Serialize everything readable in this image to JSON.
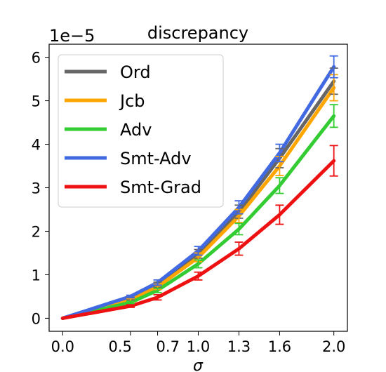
{
  "chart_data": {
    "type": "line",
    "title": "discrepancy",
    "xlabel": "σ",
    "ylabel": "",
    "y_scale_label": "1e−5",
    "x": [
      0.0,
      0.5,
      0.7,
      1.0,
      1.3,
      1.6,
      2.0
    ],
    "x_tick_labels": [
      "0.0",
      "0.5",
      "0.7",
      "1.0",
      "1.3",
      "1.6",
      "2.0"
    ],
    "y_ticks": [
      0,
      1,
      2,
      3,
      4,
      5,
      6
    ],
    "y_tick_labels": [
      "0",
      "1",
      "2",
      "3",
      "4",
      "5",
      "6"
    ],
    "xlim": [
      -0.1,
      2.1
    ],
    "ylim": [
      -0.3,
      6.3
    ],
    "legend_position": "upper-left",
    "series": [
      {
        "name": "Ord",
        "color": "#666666",
        "values": [
          0.0,
          0.45,
          0.77,
          1.48,
          2.45,
          3.68,
          5.45
        ],
        "errors": [
          0.0,
          0.03,
          0.06,
          0.1,
          0.15,
          0.22,
          0.3
        ]
      },
      {
        "name": "Jcb",
        "color": "#ffa500",
        "values": [
          0.0,
          0.42,
          0.72,
          1.4,
          2.35,
          3.5,
          5.3
        ],
        "errors": [
          0.0,
          0.03,
          0.06,
          0.1,
          0.15,
          0.22,
          0.3
        ]
      },
      {
        "name": "Adv",
        "color": "#33cc33",
        "values": [
          0.0,
          0.36,
          0.64,
          1.25,
          2.05,
          3.05,
          4.65
        ],
        "errors": [
          0.0,
          0.03,
          0.05,
          0.09,
          0.13,
          0.18,
          0.26
        ]
      },
      {
        "name": "Smt-Adv",
        "color": "#4169e1",
        "values": [
          0.0,
          0.5,
          0.82,
          1.55,
          2.55,
          3.8,
          5.78
        ],
        "errors": [
          0.0,
          0.03,
          0.06,
          0.1,
          0.15,
          0.2,
          0.25
        ]
      },
      {
        "name": "Smt-Grad",
        "color": "#ee1111",
        "values": [
          0.0,
          0.28,
          0.48,
          0.97,
          1.6,
          2.38,
          3.62
        ],
        "errors": [
          0.0,
          0.03,
          0.06,
          0.09,
          0.15,
          0.22,
          0.35
        ]
      }
    ]
  }
}
